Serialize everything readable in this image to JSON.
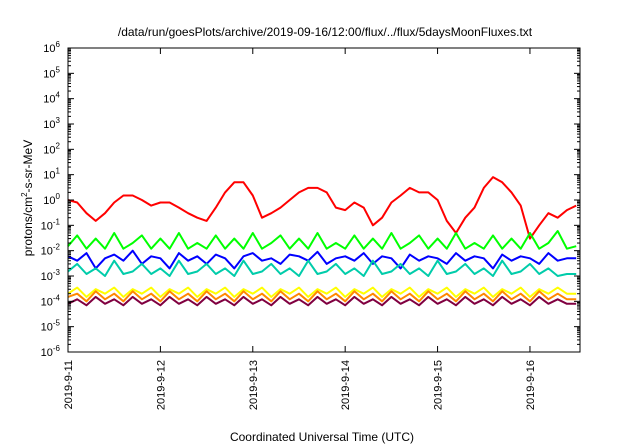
{
  "chart_data": {
    "type": "line",
    "title": "/data/run/goesPlots/archive/2019-09-16/12:00/flux/../flux/5daysMoonFluxes.txt",
    "xlabel": "Coordinated Universal Time (UTC)",
    "ylabel_base": "protons/cm",
    "ylabel_exp": "2",
    "ylabel_rest": "-s-sr-MeV",
    "y_scale": "log",
    "ylim": [
      1e-06,
      1000000.0
    ],
    "xlim": [
      "2019-09-11",
      "2019-09-16 13:00"
    ],
    "grid": false,
    "y_ticks": [
      {
        "base": "10",
        "exp": "-6"
      },
      {
        "base": "10",
        "exp": "-5"
      },
      {
        "base": "10",
        "exp": "-4"
      },
      {
        "base": "10",
        "exp": "-3"
      },
      {
        "base": "10",
        "exp": "-2"
      },
      {
        "base": "10",
        "exp": "-1"
      },
      {
        "base": "10",
        "exp": "0"
      },
      {
        "base": "10",
        "exp": "1"
      },
      {
        "base": "10",
        "exp": "2"
      },
      {
        "base": "10",
        "exp": "3"
      },
      {
        "base": "10",
        "exp": "4"
      },
      {
        "base": "10",
        "exp": "5"
      },
      {
        "base": "10",
        "exp": "6"
      }
    ],
    "x_ticks": [
      "2019-9-11",
      "2019-9-12",
      "2019-9-13",
      "2019-9-14",
      "2019-9-15",
      "2019-9-16"
    ],
    "series": [
      {
        "color": "#ff0000",
        "x_days": [
          0,
          0.1,
          0.2,
          0.3,
          0.4,
          0.5,
          0.6,
          0.7,
          0.8,
          0.9,
          1.0,
          1.1,
          1.2,
          1.3,
          1.4,
          1.5,
          1.6,
          1.7,
          1.8,
          1.9,
          2.0,
          2.1,
          2.2,
          2.3,
          2.4,
          2.5,
          2.6,
          2.7,
          2.8,
          2.9,
          3.0,
          3.1,
          3.2,
          3.3,
          3.4,
          3.5,
          3.6,
          3.7,
          3.8,
          3.9,
          4.0,
          4.1,
          4.2,
          4.3,
          4.4,
          4.5,
          4.6,
          4.7,
          4.8,
          4.9,
          5.0,
          5.1,
          5.2,
          5.3,
          5.4,
          5.5
        ],
        "y": [
          1.0,
          0.8,
          0.3,
          0.15,
          0.3,
          0.8,
          1.5,
          1.5,
          1.0,
          0.6,
          0.8,
          0.8,
          0.5,
          0.3,
          0.2,
          0.15,
          0.5,
          2.0,
          5.0,
          5.0,
          1.5,
          0.2,
          0.3,
          0.5,
          1.0,
          2.0,
          3.0,
          3.0,
          2.0,
          0.5,
          0.4,
          0.8,
          0.5,
          0.1,
          0.2,
          0.8,
          1.5,
          3.0,
          2.0,
          2.0,
          1.0,
          0.15,
          0.05,
          0.2,
          0.5,
          3.0,
          8.0,
          5.0,
          2.0,
          0.6,
          0.03,
          0.1,
          0.3,
          0.2,
          0.4,
          0.6
        ]
      },
      {
        "color": "#00ff00",
        "x_days": [
          0,
          0.1,
          0.2,
          0.3,
          0.4,
          0.5,
          0.6,
          0.7,
          0.8,
          0.9,
          1.0,
          1.1,
          1.2,
          1.3,
          1.4,
          1.5,
          1.6,
          1.7,
          1.8,
          1.9,
          2.0,
          2.1,
          2.2,
          2.3,
          2.4,
          2.5,
          2.6,
          2.7,
          2.8,
          2.9,
          3.0,
          3.1,
          3.2,
          3.3,
          3.4,
          3.5,
          3.6,
          3.7,
          3.8,
          3.9,
          4.0,
          4.1,
          4.2,
          4.3,
          4.4,
          4.5,
          4.6,
          4.7,
          4.8,
          4.9,
          5.0,
          5.1,
          5.2,
          5.3,
          5.4,
          5.5
        ],
        "y": [
          0.015,
          0.04,
          0.012,
          0.03,
          0.012,
          0.05,
          0.012,
          0.02,
          0.04,
          0.012,
          0.03,
          0.012,
          0.05,
          0.012,
          0.02,
          0.012,
          0.04,
          0.012,
          0.03,
          0.012,
          0.05,
          0.012,
          0.02,
          0.04,
          0.012,
          0.03,
          0.012,
          0.05,
          0.012,
          0.02,
          0.012,
          0.04,
          0.012,
          0.03,
          0.012,
          0.05,
          0.012,
          0.02,
          0.04,
          0.012,
          0.03,
          0.012,
          0.05,
          0.012,
          0.02,
          0.012,
          0.04,
          0.012,
          0.03,
          0.012,
          0.05,
          0.012,
          0.02,
          0.06,
          0.012,
          0.015
        ]
      },
      {
        "color": "#0000ff",
        "x_days": [
          0,
          0.1,
          0.2,
          0.3,
          0.4,
          0.5,
          0.6,
          0.7,
          0.8,
          0.9,
          1.0,
          1.1,
          1.2,
          1.3,
          1.4,
          1.5,
          1.6,
          1.7,
          1.8,
          1.9,
          2.0,
          2.1,
          2.2,
          2.3,
          2.4,
          2.5,
          2.6,
          2.7,
          2.8,
          2.9,
          3.0,
          3.1,
          3.2,
          3.3,
          3.4,
          3.5,
          3.6,
          3.7,
          3.8,
          3.9,
          4.0,
          4.1,
          4.2,
          4.3,
          4.4,
          4.5,
          4.6,
          4.7,
          4.8,
          4.9,
          5.0,
          5.1,
          5.2,
          5.3,
          5.4,
          5.5
        ],
        "y": [
          0.006,
          0.004,
          0.008,
          0.002,
          0.005,
          0.007,
          0.004,
          0.01,
          0.003,
          0.006,
          0.005,
          0.002,
          0.008,
          0.004,
          0.006,
          0.003,
          0.007,
          0.005,
          0.002,
          0.006,
          0.008,
          0.004,
          0.005,
          0.003,
          0.007,
          0.006,
          0.004,
          0.009,
          0.003,
          0.005,
          0.006,
          0.004,
          0.008,
          0.003,
          0.006,
          0.005,
          0.002,
          0.007,
          0.004,
          0.006,
          0.005,
          0.003,
          0.008,
          0.004,
          0.006,
          0.005,
          0.002,
          0.007,
          0.004,
          0.006,
          0.005,
          0.003,
          0.008,
          0.004,
          0.005,
          0.005
        ]
      },
      {
        "color": "#00ccaa",
        "x_days": [
          0,
          0.1,
          0.2,
          0.3,
          0.4,
          0.5,
          0.6,
          0.7,
          0.8,
          0.9,
          1.0,
          1.1,
          1.2,
          1.3,
          1.4,
          1.5,
          1.6,
          1.7,
          1.8,
          1.9,
          2.0,
          2.1,
          2.2,
          2.3,
          2.4,
          2.5,
          2.6,
          2.7,
          2.8,
          2.9,
          3.0,
          3.1,
          3.2,
          3.3,
          3.4,
          3.5,
          3.6,
          3.7,
          3.8,
          3.9,
          4.0,
          4.1,
          4.2,
          4.3,
          4.4,
          4.5,
          4.6,
          4.7,
          4.8,
          4.9,
          5.0,
          5.1,
          5.2,
          5.3,
          5.4,
          5.5
        ],
        "y": [
          0.0015,
          0.003,
          0.0012,
          0.002,
          0.001,
          0.004,
          0.0012,
          0.0015,
          0.003,
          0.0012,
          0.002,
          0.001,
          0.004,
          0.0012,
          0.0015,
          0.003,
          0.0012,
          0.002,
          0.001,
          0.004,
          0.0012,
          0.0015,
          0.003,
          0.0012,
          0.002,
          0.001,
          0.004,
          0.0012,
          0.0015,
          0.003,
          0.0012,
          0.002,
          0.001,
          0.004,
          0.0012,
          0.0015,
          0.003,
          0.0012,
          0.002,
          0.001,
          0.004,
          0.0012,
          0.0015,
          0.003,
          0.0012,
          0.002,
          0.001,
          0.004,
          0.0012,
          0.0015,
          0.003,
          0.0012,
          0.002,
          0.001,
          0.0012,
          0.0012
        ]
      },
      {
        "color": "#ffff00",
        "x_days": [
          0,
          0.1,
          0.2,
          0.3,
          0.4,
          0.5,
          0.6,
          0.7,
          0.8,
          0.9,
          1.0,
          1.1,
          1.2,
          1.3,
          1.4,
          1.5,
          1.6,
          1.7,
          1.8,
          1.9,
          2.0,
          2.1,
          2.2,
          2.3,
          2.4,
          2.5,
          2.6,
          2.7,
          2.8,
          2.9,
          3.0,
          3.1,
          3.2,
          3.3,
          3.4,
          3.5,
          3.6,
          3.7,
          3.8,
          3.9,
          4.0,
          4.1,
          4.2,
          4.3,
          4.4,
          4.5,
          4.6,
          4.7,
          4.8,
          4.9,
          5.0,
          5.1,
          5.2,
          5.3,
          5.4,
          5.5
        ],
        "y": [
          0.0002,
          0.00035,
          0.00015,
          0.0003,
          0.0002,
          0.00035,
          0.00015,
          0.0003,
          0.0002,
          0.00035,
          0.00015,
          0.0003,
          0.0002,
          0.00035,
          0.00015,
          0.0003,
          0.0002,
          0.00035,
          0.00015,
          0.0003,
          0.0002,
          0.00035,
          0.00015,
          0.0003,
          0.0002,
          0.00035,
          0.00015,
          0.0003,
          0.0002,
          0.00035,
          0.00015,
          0.0003,
          0.0002,
          0.00035,
          0.00015,
          0.0003,
          0.0002,
          0.00035,
          0.00015,
          0.0003,
          0.0002,
          0.00035,
          0.00015,
          0.0003,
          0.0002,
          0.00035,
          0.00015,
          0.0003,
          0.0002,
          0.00035,
          0.00015,
          0.0003,
          0.0002,
          0.00035,
          0.0002,
          0.0002
        ]
      },
      {
        "color": "#ff8800",
        "x_days": [
          0,
          0.1,
          0.2,
          0.3,
          0.4,
          0.5,
          0.6,
          0.7,
          0.8,
          0.9,
          1.0,
          1.1,
          1.2,
          1.3,
          1.4,
          1.5,
          1.6,
          1.7,
          1.8,
          1.9,
          2.0,
          2.1,
          2.2,
          2.3,
          2.4,
          2.5,
          2.6,
          2.7,
          2.8,
          2.9,
          3.0,
          3.1,
          3.2,
          3.3,
          3.4,
          3.5,
          3.6,
          3.7,
          3.8,
          3.9,
          4.0,
          4.1,
          4.2,
          4.3,
          4.4,
          4.5,
          4.6,
          4.7,
          4.8,
          4.9,
          5.0,
          5.1,
          5.2,
          5.3,
          5.4,
          5.5
        ],
        "y": [
          0.00015,
          0.0002,
          0.0001,
          0.00025,
          0.00012,
          0.0002,
          0.0001,
          0.00025,
          0.00012,
          0.0002,
          0.0001,
          0.00025,
          0.00012,
          0.0002,
          0.0001,
          0.00025,
          0.00012,
          0.0002,
          0.0001,
          0.00025,
          0.00012,
          0.0002,
          0.0001,
          0.00025,
          0.00012,
          0.0002,
          0.0001,
          0.00025,
          0.00012,
          0.0002,
          0.0001,
          0.00025,
          0.00012,
          0.0002,
          0.0001,
          0.00025,
          0.00012,
          0.0002,
          0.0001,
          0.00025,
          0.00012,
          0.0002,
          0.0001,
          0.00025,
          0.00012,
          0.0002,
          0.0001,
          0.00025,
          0.00012,
          0.0002,
          0.0001,
          0.00025,
          0.00012,
          0.0002,
          0.00012,
          0.00012
        ]
      },
      {
        "color": "#800040",
        "x_days": [
          0,
          0.1,
          0.2,
          0.3,
          0.4,
          0.5,
          0.6,
          0.7,
          0.8,
          0.9,
          1.0,
          1.1,
          1.2,
          1.3,
          1.4,
          1.5,
          1.6,
          1.7,
          1.8,
          1.9,
          2.0,
          2.1,
          2.2,
          2.3,
          2.4,
          2.5,
          2.6,
          2.7,
          2.8,
          2.9,
          3.0,
          3.1,
          3.2,
          3.3,
          3.4,
          3.5,
          3.6,
          3.7,
          3.8,
          3.9,
          4.0,
          4.1,
          4.2,
          4.3,
          4.4,
          4.5,
          4.6,
          4.7,
          4.8,
          4.9,
          5.0,
          5.1,
          5.2,
          5.3,
          5.4,
          5.5
        ],
        "y": [
          8e-05,
          0.00012,
          7e-05,
          0.00015,
          8e-05,
          0.00012,
          7e-05,
          0.00015,
          8e-05,
          0.00012,
          7e-05,
          0.00015,
          8e-05,
          0.00012,
          7e-05,
          0.00015,
          8e-05,
          0.00012,
          7e-05,
          0.00015,
          8e-05,
          0.00012,
          7e-05,
          0.00015,
          8e-05,
          0.00012,
          7e-05,
          0.00015,
          8e-05,
          0.00012,
          7e-05,
          0.00015,
          8e-05,
          0.00012,
          7e-05,
          0.00015,
          8e-05,
          0.00012,
          7e-05,
          0.00015,
          8e-05,
          0.00012,
          7e-05,
          0.00015,
          8e-05,
          0.00012,
          7e-05,
          0.00015,
          8e-05,
          0.00012,
          7e-05,
          0.00015,
          8e-05,
          0.00012,
          8e-05,
          8e-05
        ]
      }
    ]
  }
}
